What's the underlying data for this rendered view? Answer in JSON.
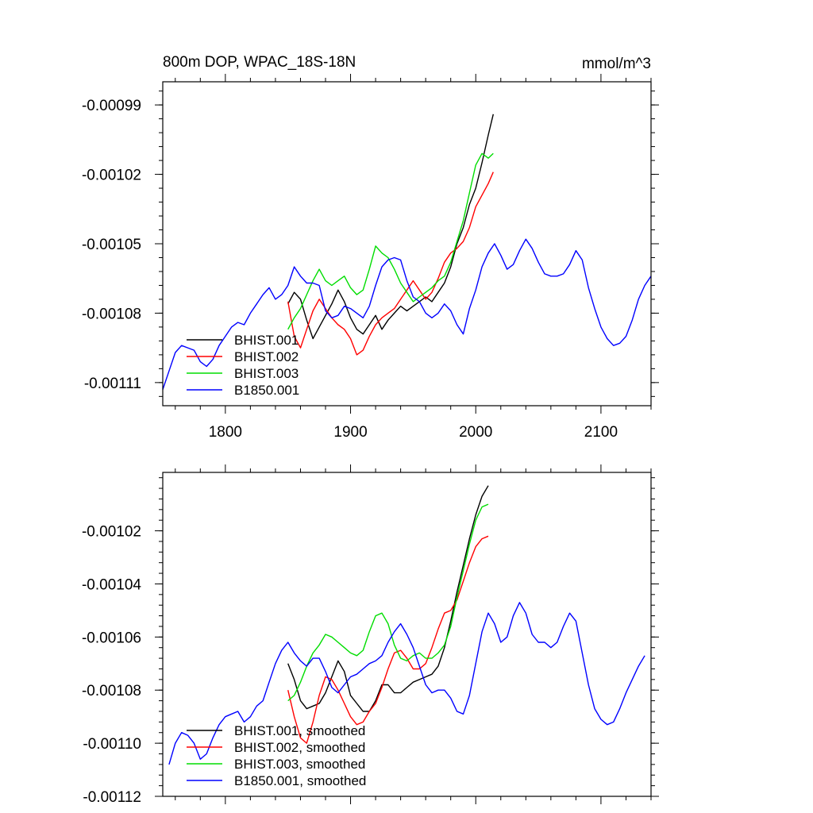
{
  "chart_data": [
    {
      "type": "line",
      "title": "800m DOP, WPAC_18S-18N",
      "units": "mmol/m^3",
      "xlim": [
        1750,
        2140
      ],
      "ylim": [
        -0.00112,
        -0.00098
      ],
      "x_ticks": [
        1800,
        1900,
        2000,
        2100
      ],
      "x_tick_labels": [
        "1800",
        "1900",
        "2000",
        "2100"
      ],
      "y_ticks": [
        -0.00099,
        -0.00102,
        -0.00105,
        -0.00108,
        -0.00111
      ],
      "y_tick_labels": [
        "-0.00099",
        "-0.00102",
        "-0.00105",
        "-0.00108",
        "-0.00111"
      ],
      "legend_position": "bottom-left",
      "series": [
        {
          "name": "BHIST.001",
          "color": "#000000",
          "x": [
            1850,
            1855,
            1860,
            1865,
            1870,
            1875,
            1880,
            1885,
            1890,
            1895,
            1900,
            1905,
            1910,
            1915,
            1920,
            1925,
            1930,
            1935,
            1940,
            1945,
            1950,
            1955,
            1960,
            1965,
            1970,
            1975,
            1980,
            1985,
            1990,
            1995,
            2000,
            2005,
            2010,
            2014
          ],
          "y": [
            -0.001076,
            -0.001071,
            -0.001074,
            -0.001083,
            -0.001091,
            -0.001086,
            -0.001081,
            -0.001076,
            -0.00107,
            -0.001075,
            -0.001082,
            -0.001087,
            -0.001089,
            -0.001085,
            -0.001081,
            -0.001087,
            -0.001083,
            -0.00108,
            -0.001077,
            -0.001079,
            -0.001077,
            -0.001075,
            -0.001073,
            -0.001075,
            -0.001071,
            -0.001067,
            -0.00106,
            -0.00105,
            -0.001043,
            -0.001033,
            -0.001026,
            -0.001015,
            -0.001003,
            -0.000994
          ]
        },
        {
          "name": "BHIST.002",
          "color": "#ff0000",
          "x": [
            1850,
            1855,
            1860,
            1865,
            1870,
            1875,
            1880,
            1885,
            1890,
            1895,
            1900,
            1905,
            1910,
            1915,
            1920,
            1925,
            1930,
            1935,
            1940,
            1945,
            1950,
            1955,
            1960,
            1965,
            1970,
            1975,
            1980,
            1985,
            1990,
            1995,
            2000,
            2005,
            2010,
            2014
          ],
          "y": [
            -0.001075,
            -0.00109,
            -0.001095,
            -0.001087,
            -0.001079,
            -0.001074,
            -0.001078,
            -0.001082,
            -0.001085,
            -0.001087,
            -0.001091,
            -0.001098,
            -0.001096,
            -0.00109,
            -0.001085,
            -0.001082,
            -0.00108,
            -0.001078,
            -0.001074,
            -0.00107,
            -0.001066,
            -0.00107,
            -0.001074,
            -0.001071,
            -0.001065,
            -0.001058,
            -0.001054,
            -0.001052,
            -0.001049,
            -0.001043,
            -0.001034,
            -0.001029,
            -0.001024,
            -0.001019
          ]
        },
        {
          "name": "BHIST.003",
          "color": "#00dd00",
          "x": [
            1850,
            1855,
            1860,
            1865,
            1870,
            1875,
            1880,
            1885,
            1890,
            1895,
            1900,
            1905,
            1910,
            1915,
            1920,
            1925,
            1930,
            1935,
            1940,
            1945,
            1950,
            1955,
            1960,
            1965,
            1970,
            1975,
            1980,
            1985,
            1990,
            1995,
            2000,
            2005,
            2010,
            2014
          ],
          "y": [
            -0.001087,
            -0.001082,
            -0.001078,
            -0.001072,
            -0.001066,
            -0.001061,
            -0.001066,
            -0.001068,
            -0.001066,
            -0.001064,
            -0.001069,
            -0.001072,
            -0.00107,
            -0.001061,
            -0.001051,
            -0.001054,
            -0.001056,
            -0.001061,
            -0.001067,
            -0.001071,
            -0.001075,
            -0.001073,
            -0.001071,
            -0.001069,
            -0.001066,
            -0.001064,
            -0.001058,
            -0.001049,
            -0.00104,
            -0.001028,
            -0.001016,
            -0.001011,
            -0.001013,
            -0.001011
          ]
        },
        {
          "name": "B1850.001",
          "color": "#0000ff",
          "x": [
            1750,
            1755,
            1760,
            1765,
            1770,
            1775,
            1780,
            1785,
            1790,
            1795,
            1800,
            1805,
            1810,
            1815,
            1820,
            1825,
            1830,
            1835,
            1840,
            1845,
            1850,
            1855,
            1860,
            1865,
            1870,
            1875,
            1880,
            1885,
            1890,
            1895,
            1900,
            1905,
            1910,
            1915,
            1920,
            1925,
            1930,
            1935,
            1940,
            1945,
            1950,
            1955,
            1960,
            1965,
            1970,
            1975,
            1980,
            1985,
            1990,
            1995,
            2000,
            2005,
            2010,
            2015,
            2020,
            2025,
            2030,
            2035,
            2040,
            2045,
            2050,
            2055,
            2060,
            2065,
            2070,
            2075,
            2080,
            2085,
            2090,
            2095,
            2100,
            2105,
            2110,
            2115,
            2120,
            2125,
            2130,
            2135,
            2140
          ],
          "y": [
            -0.001113,
            -0.001105,
            -0.001097,
            -0.001094,
            -0.001095,
            -0.001096,
            -0.001101,
            -0.001103,
            -0.0011,
            -0.001094,
            -0.00109,
            -0.001086,
            -0.001084,
            -0.001085,
            -0.00108,
            -0.001076,
            -0.001072,
            -0.001069,
            -0.001074,
            -0.001072,
            -0.001068,
            -0.00106,
            -0.001064,
            -0.001067,
            -0.001067,
            -0.001068,
            -0.001079,
            -0.001082,
            -0.001081,
            -0.001077,
            -0.001078,
            -0.00108,
            -0.001082,
            -0.001077,
            -0.001068,
            -0.00106,
            -0.001057,
            -0.001056,
            -0.001057,
            -0.001066,
            -0.001073,
            -0.001075,
            -0.00108,
            -0.001082,
            -0.00108,
            -0.001076,
            -0.001079,
            -0.001085,
            -0.001089,
            -0.001078,
            -0.00107,
            -0.00106,
            -0.001054,
            -0.00105,
            -0.001055,
            -0.001061,
            -0.001059,
            -0.001053,
            -0.001048,
            -0.001052,
            -0.001058,
            -0.001063,
            -0.001064,
            -0.001064,
            -0.001063,
            -0.001059,
            -0.001053,
            -0.001057,
            -0.001069,
            -0.001078,
            -0.001086,
            -0.001091,
            -0.001094,
            -0.001093,
            -0.00109,
            -0.001083,
            -0.001074,
            -0.001068,
            -0.001064
          ]
        }
      ]
    },
    {
      "type": "line",
      "xlim": [
        1750,
        2140
      ],
      "ylim": [
        -0.00112,
        -0.000998
      ],
      "x_ticks": [
        1800,
        1900,
        2000,
        2100
      ],
      "y_ticks": [
        -0.00102,
        -0.00104,
        -0.00106,
        -0.00108,
        -0.0011,
        -0.00112
      ],
      "y_tick_labels": [
        "-0.00102",
        "-0.00104",
        "-0.00106",
        "-0.00108",
        "-0.00110",
        "-0.00112"
      ],
      "legend_position": "bottom-left",
      "series": [
        {
          "name": "BHIST.001, smoothed",
          "color": "#000000",
          "x": [
            1850,
            1855,
            1860,
            1865,
            1870,
            1875,
            1880,
            1885,
            1890,
            1895,
            1900,
            1905,
            1910,
            1915,
            1920,
            1925,
            1930,
            1935,
            1940,
            1945,
            1950,
            1955,
            1960,
            1965,
            1970,
            1975,
            1980,
            1985,
            1990,
            1995,
            2000,
            2005,
            2010
          ],
          "y": [
            -0.00107,
            -0.001076,
            -0.001084,
            -0.001087,
            -0.001086,
            -0.001085,
            -0.001081,
            -0.001075,
            -0.001069,
            -0.001073,
            -0.001082,
            -0.001085,
            -0.001088,
            -0.001088,
            -0.001084,
            -0.001078,
            -0.001078,
            -0.001081,
            -0.001081,
            -0.001079,
            -0.001077,
            -0.001076,
            -0.001075,
            -0.001074,
            -0.001071,
            -0.001064,
            -0.001054,
            -0.001043,
            -0.001033,
            -0.001023,
            -0.001014,
            -0.001007,
            -0.001003
          ]
        },
        {
          "name": "BHIST.002, smoothed",
          "color": "#ff0000",
          "x": [
            1850,
            1855,
            1860,
            1865,
            1870,
            1875,
            1880,
            1885,
            1890,
            1895,
            1900,
            1905,
            1910,
            1915,
            1920,
            1925,
            1930,
            1935,
            1940,
            1945,
            1950,
            1955,
            1960,
            1965,
            1970,
            1975,
            1980,
            1985,
            1990,
            1995,
            2000,
            2005,
            2010
          ],
          "y": [
            -0.00108,
            -0.00109,
            -0.001098,
            -0.0011,
            -0.001092,
            -0.001082,
            -0.001075,
            -0.001076,
            -0.00108,
            -0.001085,
            -0.00109,
            -0.001093,
            -0.001092,
            -0.001088,
            -0.001085,
            -0.001079,
            -0.001072,
            -0.001066,
            -0.001065,
            -0.001068,
            -0.001072,
            -0.001072,
            -0.00107,
            -0.001064,
            -0.001057,
            -0.001051,
            -0.00105,
            -0.001046,
            -0.001039,
            -0.001032,
            -0.001026,
            -0.001023,
            -0.001022
          ]
        },
        {
          "name": "BHIST.003, smoothed",
          "color": "#00dd00",
          "x": [
            1850,
            1855,
            1860,
            1865,
            1870,
            1875,
            1880,
            1885,
            1890,
            1895,
            1900,
            1905,
            1910,
            1915,
            1920,
            1925,
            1930,
            1935,
            1940,
            1945,
            1950,
            1955,
            1960,
            1965,
            1970,
            1975,
            1980,
            1985,
            1990,
            1995,
            2000,
            2005,
            2010
          ],
          "y": [
            -0.001084,
            -0.001082,
            -0.001077,
            -0.001071,
            -0.001066,
            -0.001063,
            -0.001059,
            -0.00106,
            -0.001062,
            -0.001064,
            -0.001066,
            -0.001067,
            -0.001065,
            -0.001058,
            -0.001052,
            -0.001051,
            -0.001055,
            -0.001063,
            -0.001068,
            -0.001069,
            -0.001067,
            -0.001066,
            -0.001068,
            -0.001068,
            -0.001066,
            -0.001063,
            -0.001056,
            -0.001045,
            -0.001035,
            -0.001025,
            -0.001016,
            -0.001011,
            -0.00101
          ]
        },
        {
          "name": "B1850.001, smoothed",
          "color": "#0000ff",
          "x": [
            1755,
            1760,
            1765,
            1770,
            1775,
            1780,
            1785,
            1790,
            1795,
            1800,
            1805,
            1810,
            1815,
            1820,
            1825,
            1830,
            1835,
            1840,
            1845,
            1850,
            1855,
            1860,
            1865,
            1870,
            1875,
            1880,
            1885,
            1890,
            1895,
            1900,
            1905,
            1910,
            1915,
            1920,
            1925,
            1930,
            1935,
            1940,
            1945,
            1950,
            1955,
            1960,
            1965,
            1970,
            1975,
            1980,
            1985,
            1990,
            1995,
            2000,
            2005,
            2010,
            2015,
            2020,
            2025,
            2030,
            2035,
            2040,
            2045,
            2050,
            2055,
            2060,
            2065,
            2070,
            2075,
            2080,
            2085,
            2090,
            2095,
            2100,
            2105,
            2110,
            2115,
            2120,
            2125,
            2130,
            2135
          ],
          "y": [
            -0.001108,
            -0.0011,
            -0.001096,
            -0.001097,
            -0.0011,
            -0.001106,
            -0.001104,
            -0.001098,
            -0.001093,
            -0.00109,
            -0.001089,
            -0.001088,
            -0.001092,
            -0.00109,
            -0.001086,
            -0.001084,
            -0.001077,
            -0.00107,
            -0.001065,
            -0.001062,
            -0.001066,
            -0.001069,
            -0.001071,
            -0.001068,
            -0.001068,
            -0.001073,
            -0.001079,
            -0.001081,
            -0.001078,
            -0.001075,
            -0.001074,
            -0.001072,
            -0.00107,
            -0.001069,
            -0.001067,
            -0.001062,
            -0.001058,
            -0.001055,
            -0.001059,
            -0.001064,
            -0.001071,
            -0.001078,
            -0.001081,
            -0.00108,
            -0.00108,
            -0.001083,
            -0.001088,
            -0.001089,
            -0.001082,
            -0.00107,
            -0.001058,
            -0.001051,
            -0.001055,
            -0.001062,
            -0.00106,
            -0.001052,
            -0.001047,
            -0.001051,
            -0.001059,
            -0.001062,
            -0.001062,
            -0.001064,
            -0.001062,
            -0.001056,
            -0.001051,
            -0.001054,
            -0.001066,
            -0.001078,
            -0.001087,
            -0.001091,
            -0.001093,
            -0.001092,
            -0.001087,
            -0.001081,
            -0.001076,
            -0.001071,
            -0.001067
          ]
        }
      ]
    }
  ]
}
